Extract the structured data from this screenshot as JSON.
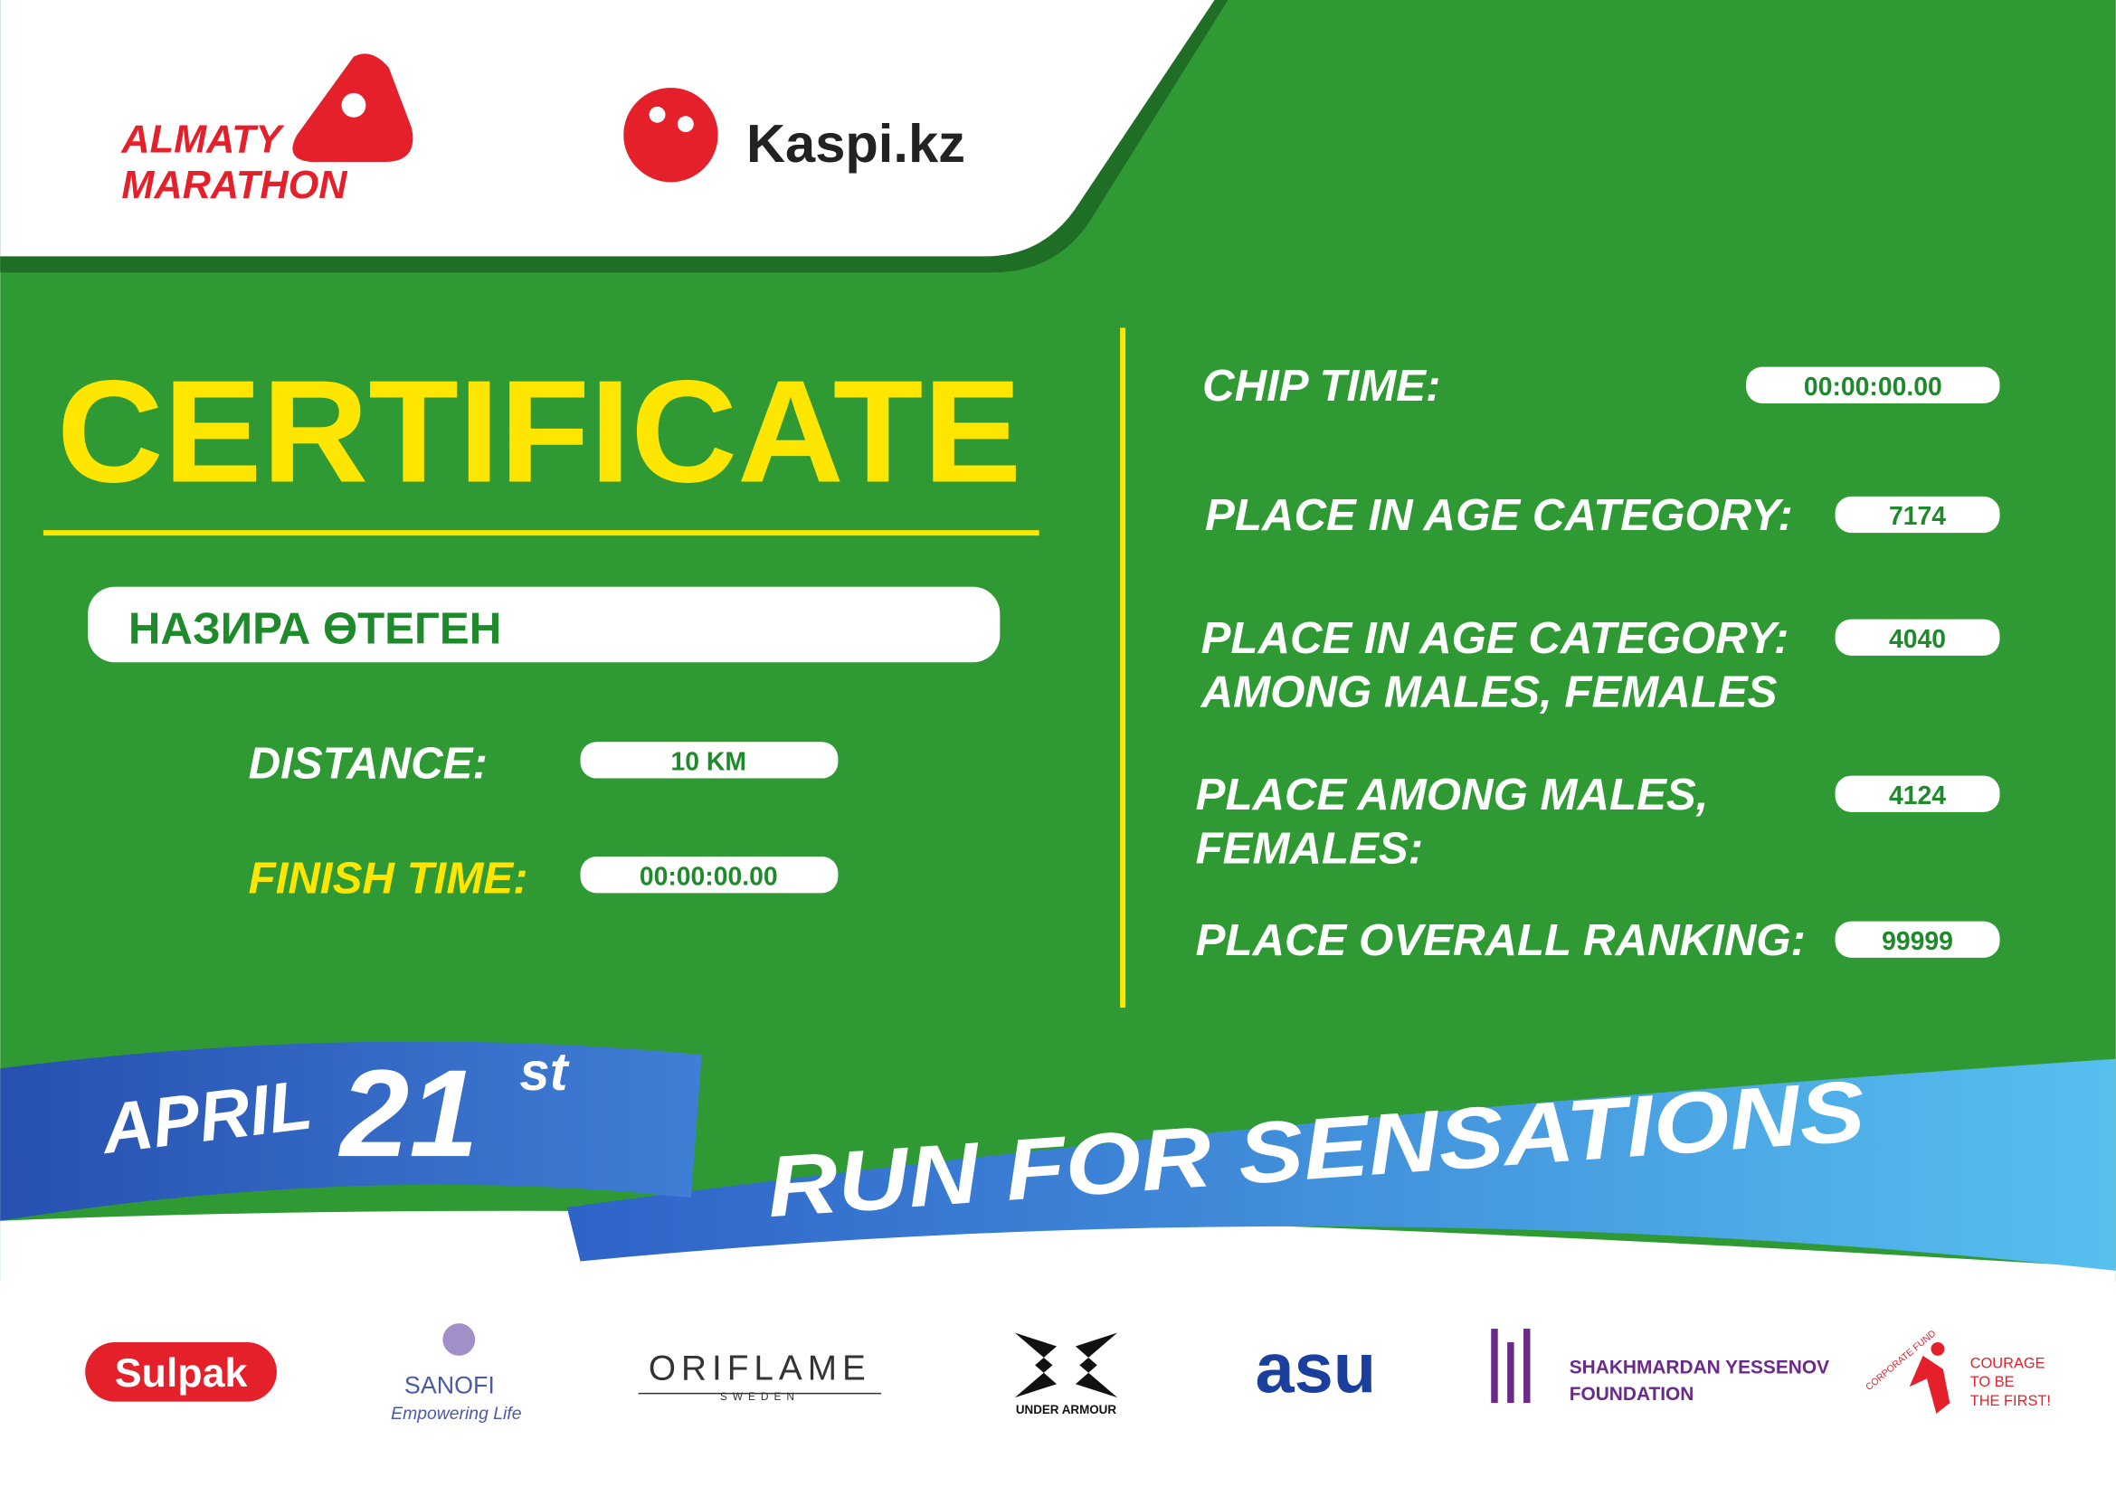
{
  "header": {
    "logo_line1": "ALMATY",
    "logo_line2": "MARATHON",
    "partner": "Kaspi.kz"
  },
  "certificate": {
    "title": "CERTIFICATE",
    "name": "НАЗИРА ӨТЕГЕН",
    "fields": [
      {
        "label": [
          "DISTANCE:"
        ],
        "value": "10 KM"
      },
      {
        "label": [
          "FINISH TIME:"
        ],
        "value": "00:00:00.00"
      }
    ]
  },
  "results": [
    {
      "label": [
        "CHIP TIME:"
      ],
      "value": "00:00:00.00"
    },
    {
      "label": [
        "PLACE IN AGE CATEGORY:"
      ],
      "value": 7174
    },
    {
      "label": [
        "PLACE IN AGE CATEGORY:",
        "AMONG MALES, FEMALES"
      ],
      "value": 4040
    },
    {
      "label": [
        "PLACE AMONG MALES,",
        "FEMALES:"
      ],
      "value": 4124
    },
    {
      "label": [
        "PLACE OVERALL RANKING:"
      ],
      "value": 99999
    }
  ],
  "banner": {
    "month": "APRIL",
    "day": "21",
    "suffix": "st",
    "slogan": "RUN FOR SENSATIONS"
  },
  "sponsors": {
    "sulpak": "Sulpak",
    "sanofi": {
      "name": "SANOFI",
      "tagline": "Empowering Life"
    },
    "oriflame": {
      "name": "ORIFLAME",
      "country": "SWEDEN"
    },
    "under_armour": "UNDER ARMOUR",
    "asu": "asu",
    "yessenov": [
      "SHAKHMARDAN YESSENOV",
      "FOUNDATION"
    ],
    "courage": {
      "fund": "CORPORATE FUND",
      "slogan": [
        "COURAGE",
        "TO BE",
        "THE FIRST!"
      ]
    }
  }
}
